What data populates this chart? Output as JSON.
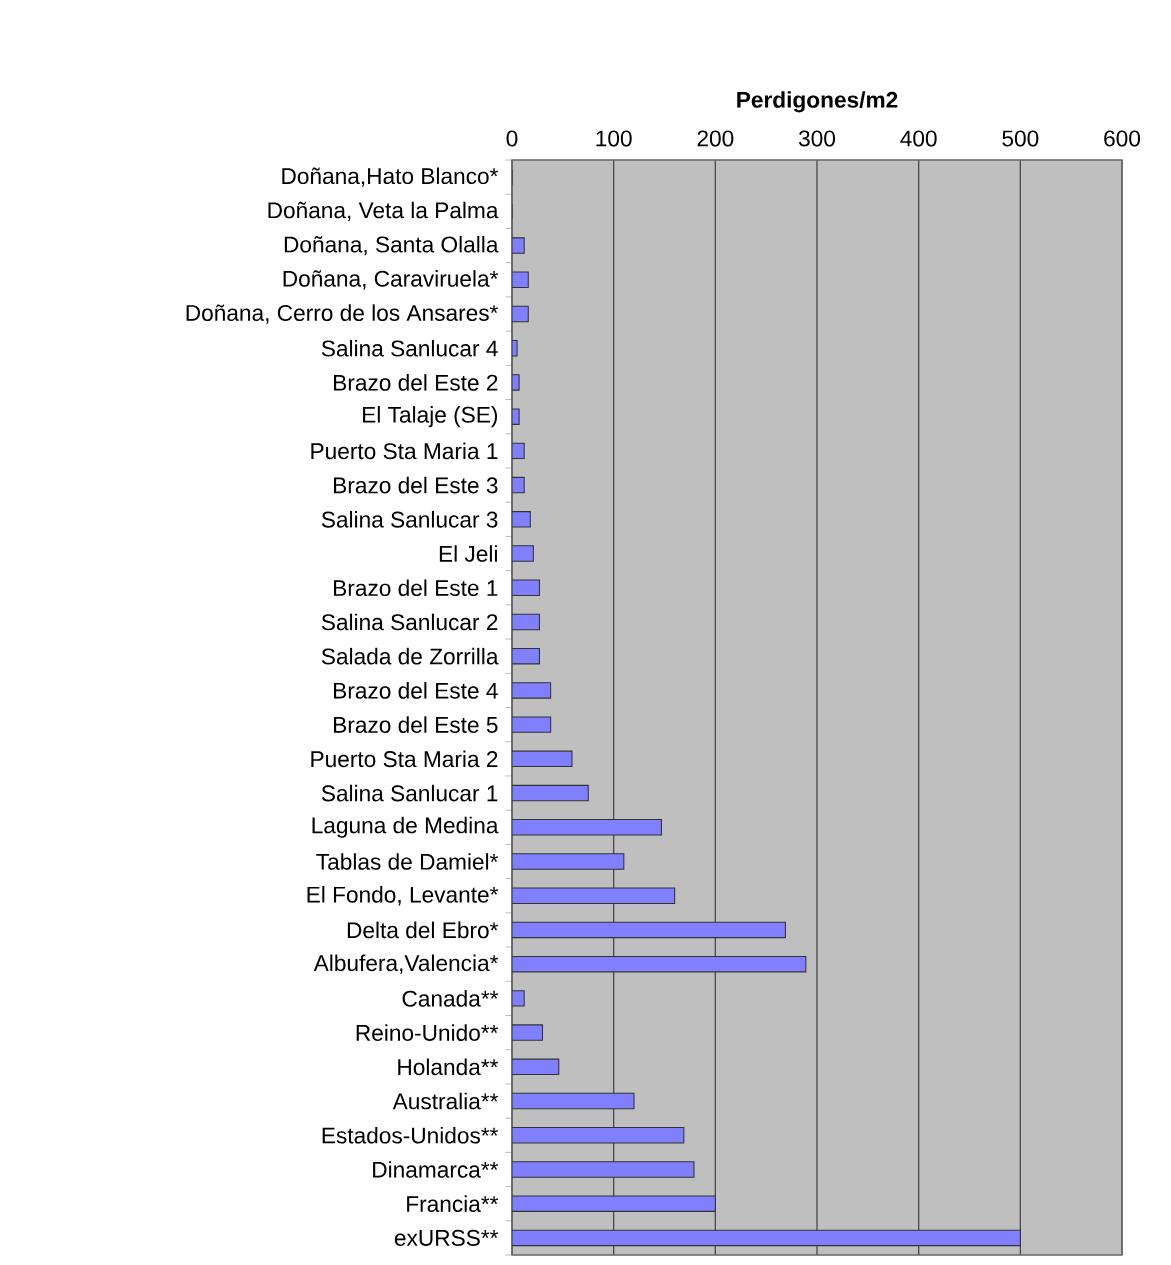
{
  "chart_data": {
    "type": "bar",
    "orientation": "horizontal",
    "xlabel": "Perdigones/m2",
    "categories": [
      "Doñana,Hato Blanco*",
      "Doñana, Veta la Palma",
      "Doñana, Santa Olalla",
      "Doñana, Caraviruela*",
      "Doñana, Cerro de los Ansares*",
      "Salina Sanlucar 4",
      "Brazo del Este 2",
      "El Talaje (SE)",
      "Puerto Sta Maria 1",
      "Brazo del Este 3",
      "Salina Sanlucar 3",
      "El Jeli",
      "Brazo del Este 1",
      "Salina Sanlucar 2",
      "Salada de Zorrilla",
      "Brazo del Este 4",
      "Brazo del Este 5",
      "Puerto Sta Maria 2",
      "Salina Sanlucar 1",
      "Laguna de Medina",
      "Tablas  de Damiel*",
      "El Fondo, Levante*",
      "Delta del Ebro*",
      "Albufera,Valencia*",
      "Canada**",
      "Reino-Unido**",
      "Holanda**",
      "Australia**",
      "Estados-Unidos**",
      "Dinamarca**",
      "Francia**",
      "exURSS**"
    ],
    "values": [
      0,
      0,
      12,
      16,
      16,
      5,
      7,
      7,
      12,
      12,
      18,
      21,
      27,
      27,
      27,
      38,
      38,
      59,
      75,
      147,
      110,
      160,
      269,
      289,
      12,
      30,
      46,
      120,
      169,
      179,
      200,
      500
    ],
    "color": "#8080ff",
    "xlim": [
      0,
      600
    ],
    "xticks": [
      0,
      100,
      200,
      300,
      400,
      500,
      600
    ],
    "grid": "x"
  }
}
